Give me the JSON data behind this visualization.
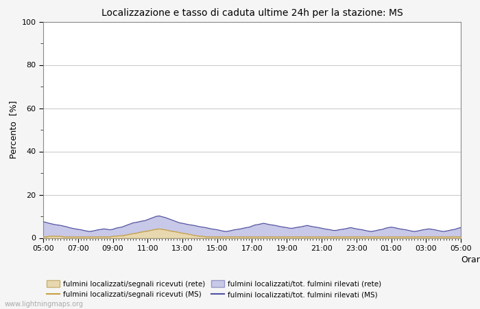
{
  "title": "Localizzazione e tasso di caduta ultime 24h per la stazione: MS",
  "ylabel": "Percento  [%]",
  "xlabel": "Orario",
  "ylim": [
    0,
    100
  ],
  "yticks": [
    0,
    20,
    40,
    60,
    80,
    100
  ],
  "yticks_minor": [
    10,
    30,
    50,
    70,
    90
  ],
  "x_labels": [
    "05:00",
    "07:00",
    "09:00",
    "11:00",
    "13:00",
    "15:00",
    "17:00",
    "19:00",
    "21:00",
    "23:00",
    "01:00",
    "03:00",
    "05:00"
  ],
  "bg_color": "#f5f5f5",
  "plot_bg_color": "#ffffff",
  "grid_color": "#cccccc",
  "watermark": "www.lightningmaps.org",
  "fill_rete_color": "#e8d8b0",
  "fill_rete_edge_color": "#c8b070",
  "fill_ms_color": "#c8c8e8",
  "fill_ms_edge_color": "#9898c8",
  "line_ms_color": "#5050a0",
  "line_rete_line_color": "#c8a040",
  "n_points": 145,
  "fill_rete_values": [
    0.5,
    0.5,
    0.8,
    0.8,
    0.8,
    0.8,
    0.8,
    0.5,
    0.5,
    0.5,
    0.5,
    0.5,
    0.5,
    0.5,
    0.5,
    0.5,
    0.5,
    0.5,
    0.5,
    0.5,
    0.5,
    0.5,
    0.5,
    0.5,
    0.8,
    0.8,
    1.0,
    1.0,
    1.2,
    1.5,
    1.8,
    2.0,
    2.2,
    2.5,
    2.8,
    3.0,
    3.2,
    3.5,
    3.8,
    4.0,
    4.2,
    4.0,
    3.8,
    3.5,
    3.2,
    3.0,
    2.8,
    2.5,
    2.2,
    2.0,
    1.8,
    1.5,
    1.2,
    1.0,
    0.8,
    0.8,
    0.5,
    0.5,
    0.5,
    0.5,
    0.5,
    0.5,
    0.5,
    0.5,
    0.5,
    0.5,
    0.5,
    0.5,
    0.5,
    0.5,
    0.5,
    0.5,
    0.5,
    0.5,
    0.5,
    0.5,
    0.5,
    0.5,
    0.5,
    0.5,
    0.5,
    0.5,
    0.5,
    0.5,
    0.5,
    0.5,
    0.5,
    0.5,
    0.5,
    0.5,
    0.5,
    0.5,
    0.5,
    0.5,
    0.5,
    0.5,
    0.5,
    0.5,
    0.5,
    0.5,
    0.5,
    0.5,
    0.5,
    0.5,
    0.5,
    0.5,
    0.5,
    0.5,
    0.5,
    0.5,
    0.5,
    0.5,
    0.5,
    0.5,
    0.5,
    0.5,
    0.5,
    0.5,
    0.5,
    0.5,
    0.5,
    0.5,
    0.5,
    0.5,
    0.5,
    0.5,
    0.5,
    0.5,
    0.5,
    0.5,
    0.5,
    0.5,
    0.5,
    0.5,
    0.5,
    0.5,
    0.5,
    0.5,
    0.5,
    0.5,
    0.5,
    0.5,
    0.5,
    0.5,
    0.5
  ],
  "fill_ms_values": [
    7.5,
    7.2,
    6.8,
    6.5,
    6.2,
    6.0,
    5.8,
    5.5,
    5.2,
    4.8,
    4.5,
    4.2,
    4.0,
    3.8,
    3.5,
    3.2,
    3.0,
    3.2,
    3.5,
    3.8,
    4.0,
    4.2,
    4.0,
    3.8,
    4.0,
    4.5,
    4.8,
    5.0,
    5.5,
    6.0,
    6.5,
    7.0,
    7.2,
    7.5,
    7.8,
    8.0,
    8.5,
    9.0,
    9.5,
    10.0,
    10.2,
    9.8,
    9.5,
    9.0,
    8.5,
    8.0,
    7.5,
    7.0,
    6.8,
    6.5,
    6.2,
    6.0,
    5.8,
    5.5,
    5.2,
    5.0,
    4.8,
    4.5,
    4.2,
    4.0,
    3.8,
    3.5,
    3.2,
    3.0,
    3.2,
    3.5,
    3.8,
    4.0,
    4.2,
    4.5,
    4.8,
    5.0,
    5.5,
    6.0,
    6.2,
    6.5,
    6.8,
    6.5,
    6.2,
    6.0,
    5.8,
    5.5,
    5.2,
    5.0,
    4.8,
    4.5,
    4.5,
    4.8,
    5.0,
    5.2,
    5.5,
    5.8,
    5.5,
    5.2,
    5.0,
    4.8,
    4.5,
    4.2,
    4.0,
    3.8,
    3.5,
    3.5,
    3.8,
    4.0,
    4.2,
    4.5,
    4.8,
    4.5,
    4.2,
    4.0,
    3.8,
    3.5,
    3.2,
    3.0,
    3.2,
    3.5,
    3.8,
    4.0,
    4.5,
    4.8,
    5.0,
    4.8,
    4.5,
    4.2,
    4.0,
    3.8,
    3.5,
    3.2,
    3.0,
    3.2,
    3.5,
    3.8,
    4.0,
    4.2,
    4.0,
    3.8,
    3.5,
    3.2,
    3.0,
    3.2,
    3.5,
    3.8,
    4.0,
    4.5,
    4.8
  ],
  "legend_row1": [
    "fulmini localizzati/segnali ricevuti (rete)",
    "fulmini localizzati/segnali ricevuti (MS)"
  ],
  "legend_row2": [
    "fulmini localizzati/tot. fulmini rilevati (rete)",
    "fulmini localizzati/tot. fulmini rilevati (MS)"
  ]
}
